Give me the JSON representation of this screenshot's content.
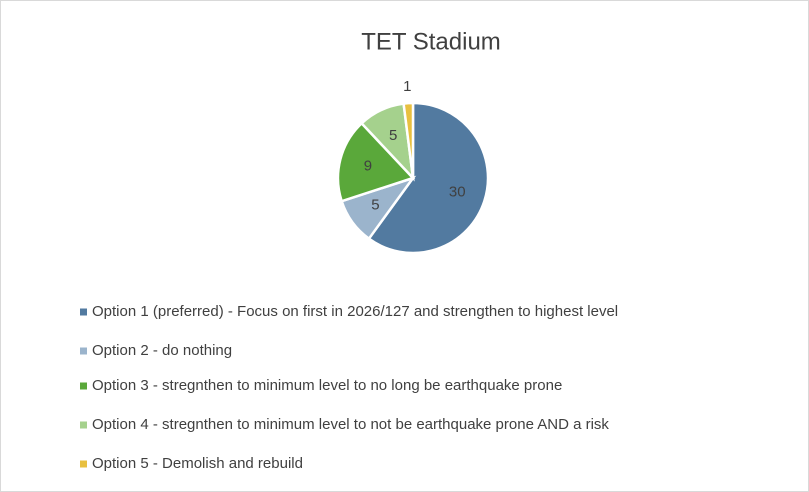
{
  "chart_data": {
    "type": "pie",
    "title": "TET Stadium",
    "categories": [
      "Option 1 (preferred)  - Focus on first in 2026/127 and strengthen to highest level",
      "Option 2 - do nothing",
      "Option 3 - stregnthen to minimum level to no long be earthquake prone",
      "Option 4 - stregnthen to minimum level to not be earthquake prone AND a risk",
      "Option 5 - Demolish and rebuild"
    ],
    "values": [
      30,
      5,
      9,
      5,
      1
    ],
    "colors": [
      "#527aa0",
      "#9bb4cc",
      "#5aa83a",
      "#a5d18d",
      "#e8c040"
    ]
  }
}
